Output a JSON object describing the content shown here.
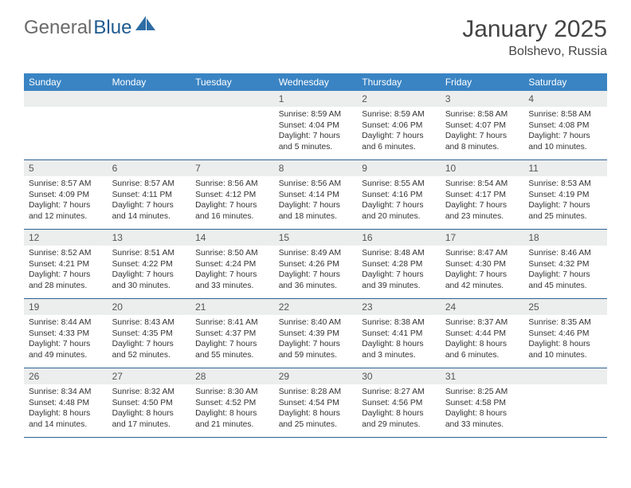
{
  "logo": {
    "part1": "General",
    "part2": "Blue"
  },
  "title": "January 2025",
  "location": "Bolshevo, Russia",
  "colors": {
    "header_bg": "#3a84c4",
    "header_text": "#ffffff",
    "daynum_bg": "#eceded",
    "row_divider": "#2c6396",
    "logo_gray": "#6a6a6a",
    "logo_blue": "#1e5a8f"
  },
  "weekdays": [
    "Sunday",
    "Monday",
    "Tuesday",
    "Wednesday",
    "Thursday",
    "Friday",
    "Saturday"
  ],
  "weeks": [
    [
      {
        "n": "",
        "sr": "",
        "ss": "",
        "dl": ""
      },
      {
        "n": "",
        "sr": "",
        "ss": "",
        "dl": ""
      },
      {
        "n": "",
        "sr": "",
        "ss": "",
        "dl": ""
      },
      {
        "n": "1",
        "sr": "Sunrise: 8:59 AM",
        "ss": "Sunset: 4:04 PM",
        "dl": "Daylight: 7 hours and 5 minutes."
      },
      {
        "n": "2",
        "sr": "Sunrise: 8:59 AM",
        "ss": "Sunset: 4:06 PM",
        "dl": "Daylight: 7 hours and 6 minutes."
      },
      {
        "n": "3",
        "sr": "Sunrise: 8:58 AM",
        "ss": "Sunset: 4:07 PM",
        "dl": "Daylight: 7 hours and 8 minutes."
      },
      {
        "n": "4",
        "sr": "Sunrise: 8:58 AM",
        "ss": "Sunset: 4:08 PM",
        "dl": "Daylight: 7 hours and 10 minutes."
      }
    ],
    [
      {
        "n": "5",
        "sr": "Sunrise: 8:57 AM",
        "ss": "Sunset: 4:09 PM",
        "dl": "Daylight: 7 hours and 12 minutes."
      },
      {
        "n": "6",
        "sr": "Sunrise: 8:57 AM",
        "ss": "Sunset: 4:11 PM",
        "dl": "Daylight: 7 hours and 14 minutes."
      },
      {
        "n": "7",
        "sr": "Sunrise: 8:56 AM",
        "ss": "Sunset: 4:12 PM",
        "dl": "Daylight: 7 hours and 16 minutes."
      },
      {
        "n": "8",
        "sr": "Sunrise: 8:56 AM",
        "ss": "Sunset: 4:14 PM",
        "dl": "Daylight: 7 hours and 18 minutes."
      },
      {
        "n": "9",
        "sr": "Sunrise: 8:55 AM",
        "ss": "Sunset: 4:16 PM",
        "dl": "Daylight: 7 hours and 20 minutes."
      },
      {
        "n": "10",
        "sr": "Sunrise: 8:54 AM",
        "ss": "Sunset: 4:17 PM",
        "dl": "Daylight: 7 hours and 23 minutes."
      },
      {
        "n": "11",
        "sr": "Sunrise: 8:53 AM",
        "ss": "Sunset: 4:19 PM",
        "dl": "Daylight: 7 hours and 25 minutes."
      }
    ],
    [
      {
        "n": "12",
        "sr": "Sunrise: 8:52 AM",
        "ss": "Sunset: 4:21 PM",
        "dl": "Daylight: 7 hours and 28 minutes."
      },
      {
        "n": "13",
        "sr": "Sunrise: 8:51 AM",
        "ss": "Sunset: 4:22 PM",
        "dl": "Daylight: 7 hours and 30 minutes."
      },
      {
        "n": "14",
        "sr": "Sunrise: 8:50 AM",
        "ss": "Sunset: 4:24 PM",
        "dl": "Daylight: 7 hours and 33 minutes."
      },
      {
        "n": "15",
        "sr": "Sunrise: 8:49 AM",
        "ss": "Sunset: 4:26 PM",
        "dl": "Daylight: 7 hours and 36 minutes."
      },
      {
        "n": "16",
        "sr": "Sunrise: 8:48 AM",
        "ss": "Sunset: 4:28 PM",
        "dl": "Daylight: 7 hours and 39 minutes."
      },
      {
        "n": "17",
        "sr": "Sunrise: 8:47 AM",
        "ss": "Sunset: 4:30 PM",
        "dl": "Daylight: 7 hours and 42 minutes."
      },
      {
        "n": "18",
        "sr": "Sunrise: 8:46 AM",
        "ss": "Sunset: 4:32 PM",
        "dl": "Daylight: 7 hours and 45 minutes."
      }
    ],
    [
      {
        "n": "19",
        "sr": "Sunrise: 8:44 AM",
        "ss": "Sunset: 4:33 PM",
        "dl": "Daylight: 7 hours and 49 minutes."
      },
      {
        "n": "20",
        "sr": "Sunrise: 8:43 AM",
        "ss": "Sunset: 4:35 PM",
        "dl": "Daylight: 7 hours and 52 minutes."
      },
      {
        "n": "21",
        "sr": "Sunrise: 8:41 AM",
        "ss": "Sunset: 4:37 PM",
        "dl": "Daylight: 7 hours and 55 minutes."
      },
      {
        "n": "22",
        "sr": "Sunrise: 8:40 AM",
        "ss": "Sunset: 4:39 PM",
        "dl": "Daylight: 7 hours and 59 minutes."
      },
      {
        "n": "23",
        "sr": "Sunrise: 8:38 AM",
        "ss": "Sunset: 4:41 PM",
        "dl": "Daylight: 8 hours and 3 minutes."
      },
      {
        "n": "24",
        "sr": "Sunrise: 8:37 AM",
        "ss": "Sunset: 4:44 PM",
        "dl": "Daylight: 8 hours and 6 minutes."
      },
      {
        "n": "25",
        "sr": "Sunrise: 8:35 AM",
        "ss": "Sunset: 4:46 PM",
        "dl": "Daylight: 8 hours and 10 minutes."
      }
    ],
    [
      {
        "n": "26",
        "sr": "Sunrise: 8:34 AM",
        "ss": "Sunset: 4:48 PM",
        "dl": "Daylight: 8 hours and 14 minutes."
      },
      {
        "n": "27",
        "sr": "Sunrise: 8:32 AM",
        "ss": "Sunset: 4:50 PM",
        "dl": "Daylight: 8 hours and 17 minutes."
      },
      {
        "n": "28",
        "sr": "Sunrise: 8:30 AM",
        "ss": "Sunset: 4:52 PM",
        "dl": "Daylight: 8 hours and 21 minutes."
      },
      {
        "n": "29",
        "sr": "Sunrise: 8:28 AM",
        "ss": "Sunset: 4:54 PM",
        "dl": "Daylight: 8 hours and 25 minutes."
      },
      {
        "n": "30",
        "sr": "Sunrise: 8:27 AM",
        "ss": "Sunset: 4:56 PM",
        "dl": "Daylight: 8 hours and 29 minutes."
      },
      {
        "n": "31",
        "sr": "Sunrise: 8:25 AM",
        "ss": "Sunset: 4:58 PM",
        "dl": "Daylight: 8 hours and 33 minutes."
      },
      {
        "n": "",
        "sr": "",
        "ss": "",
        "dl": ""
      }
    ]
  ]
}
